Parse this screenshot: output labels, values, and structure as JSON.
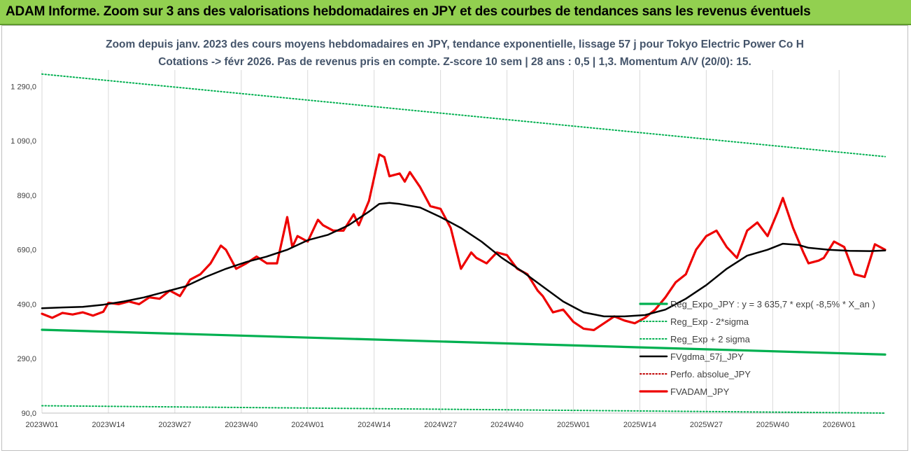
{
  "banner": {
    "text": "ADAM Informe. Zoom sur 3 ans des valorisations hebdomadaires en JPY et des courbes de tendances sans les revenus éventuels",
    "color": "#92d050"
  },
  "chart_data": {
    "type": "line",
    "title_line1": "Zoom depuis janv. 2023 des cours moyens hebdomadaires en JPY, tendance exponentielle, lissage 57 j pour Tokyo Electric Power Co H",
    "title_line2": "Cotations -> févr 2026.  Pas de revenus pris en compte. Z-score 10 sem | 28 ans : 0,5 | 1,3. Momentum A/V (20/0): 15.",
    "ylim": [
      90,
      1350
    ],
    "yticks": [
      "90,0",
      "290,0",
      "490,0",
      "690,0",
      "890,0",
      "1 090,0",
      "1 290,0"
    ],
    "ytick_values": [
      90,
      290,
      490,
      690,
      890,
      1090,
      1290
    ],
    "xticks": [
      "2023W01",
      "2023W14",
      "2023W27",
      "2023W40",
      "2024W01",
      "2024W14",
      "2024W27",
      "2024W40",
      "2025W01",
      "2025W14",
      "2025W27",
      "2025W40",
      "2026W01"
    ],
    "xtick_index": [
      0,
      13,
      26,
      39,
      52,
      65,
      78,
      91,
      104,
      117,
      130,
      143,
      156
    ],
    "n_weeks": 166,
    "grid": "vertical",
    "legend_position": "right",
    "series": [
      {
        "name": "Reg_Expo_JPY : y = 3 635,7 * exp( -8,5% *  X_an )",
        "color": "#00b050",
        "style": "solid-thick",
        "x": [
          0,
          165
        ],
        "y": [
          396,
          305
        ]
      },
      {
        "name": "Reg_Exp - 2*sigma",
        "color": "#00b050",
        "style": "dotted",
        "x": [
          0,
          165
        ],
        "y": [
          117,
          90
        ]
      },
      {
        "name": "Reg_Exp + 2 sigma",
        "color": "#00b050",
        "style": "dotted",
        "x": [
          0,
          165
        ],
        "y": [
          1335,
          1032
        ]
      },
      {
        "name": "FVgdma_57j_JPY",
        "color": "#000000",
        "style": "solid",
        "x": [
          0,
          4,
          8,
          12,
          16,
          20,
          24,
          28,
          32,
          36,
          40,
          44,
          48,
          52,
          56,
          60,
          64,
          66,
          68,
          70,
          74,
          78,
          82,
          86,
          90,
          94,
          98,
          102,
          106,
          110,
          114,
          118,
          122,
          126,
          130,
          134,
          138,
          142,
          145,
          148,
          150,
          154,
          158,
          162,
          165
        ],
        "y": [
          475,
          478,
          480,
          488,
          500,
          515,
          535,
          555,
          590,
          620,
          645,
          665,
          690,
          725,
          745,
          780,
          830,
          858,
          862,
          858,
          845,
          810,
          770,
          720,
          660,
          610,
          555,
          500,
          460,
          445,
          445,
          450,
          470,
          510,
          560,
          620,
          668,
          690,
          712,
          708,
          697,
          690,
          686,
          685,
          687
        ]
      },
      {
        "name": "Perfo. absolue_JPY",
        "color": "#c00000",
        "style": "dotted",
        "x": [],
        "y": []
      },
      {
        "name": "FVADAM_JPY",
        "color": "#ee0000",
        "style": "solid-thick",
        "x": [
          0,
          2,
          4,
          6,
          8,
          10,
          12,
          13,
          15,
          17,
          19,
          21,
          23,
          25,
          27,
          29,
          31,
          33,
          35,
          36,
          38,
          40,
          42,
          44,
          46,
          48,
          49,
          50,
          52,
          54,
          55,
          57,
          59,
          61,
          62,
          64,
          66,
          67,
          68,
          70,
          71,
          72,
          74,
          76,
          78,
          80,
          82,
          84,
          85,
          87,
          89,
          91,
          93,
          95,
          97,
          98,
          100,
          102,
          104,
          106,
          108,
          110,
          112,
          114,
          116,
          118,
          120,
          122,
          124,
          126,
          128,
          130,
          132,
          134,
          136,
          138,
          140,
          142,
          144,
          145,
          147,
          149,
          150,
          152,
          153,
          155,
          157,
          159,
          161,
          163,
          165
        ],
        "y": [
          455,
          440,
          458,
          452,
          460,
          448,
          462,
          495,
          490,
          500,
          490,
          515,
          510,
          540,
          520,
          580,
          600,
          640,
          705,
          690,
          620,
          640,
          665,
          640,
          640,
          810,
          700,
          740,
          720,
          800,
          780,
          760,
          760,
          820,
          780,
          870,
          1040,
          1030,
          960,
          970,
          940,
          975,
          920,
          850,
          840,
          770,
          620,
          680,
          660,
          640,
          680,
          670,
          620,
          600,
          540,
          520,
          460,
          470,
          425,
          400,
          395,
          420,
          445,
          430,
          420,
          440,
          470,
          515,
          570,
          600,
          690,
          740,
          760,
          700,
          660,
          760,
          790,
          740,
          830,
          880,
          770,
          680,
          640,
          650,
          660,
          720,
          700,
          600,
          590,
          710,
          690
        ]
      }
    ]
  }
}
